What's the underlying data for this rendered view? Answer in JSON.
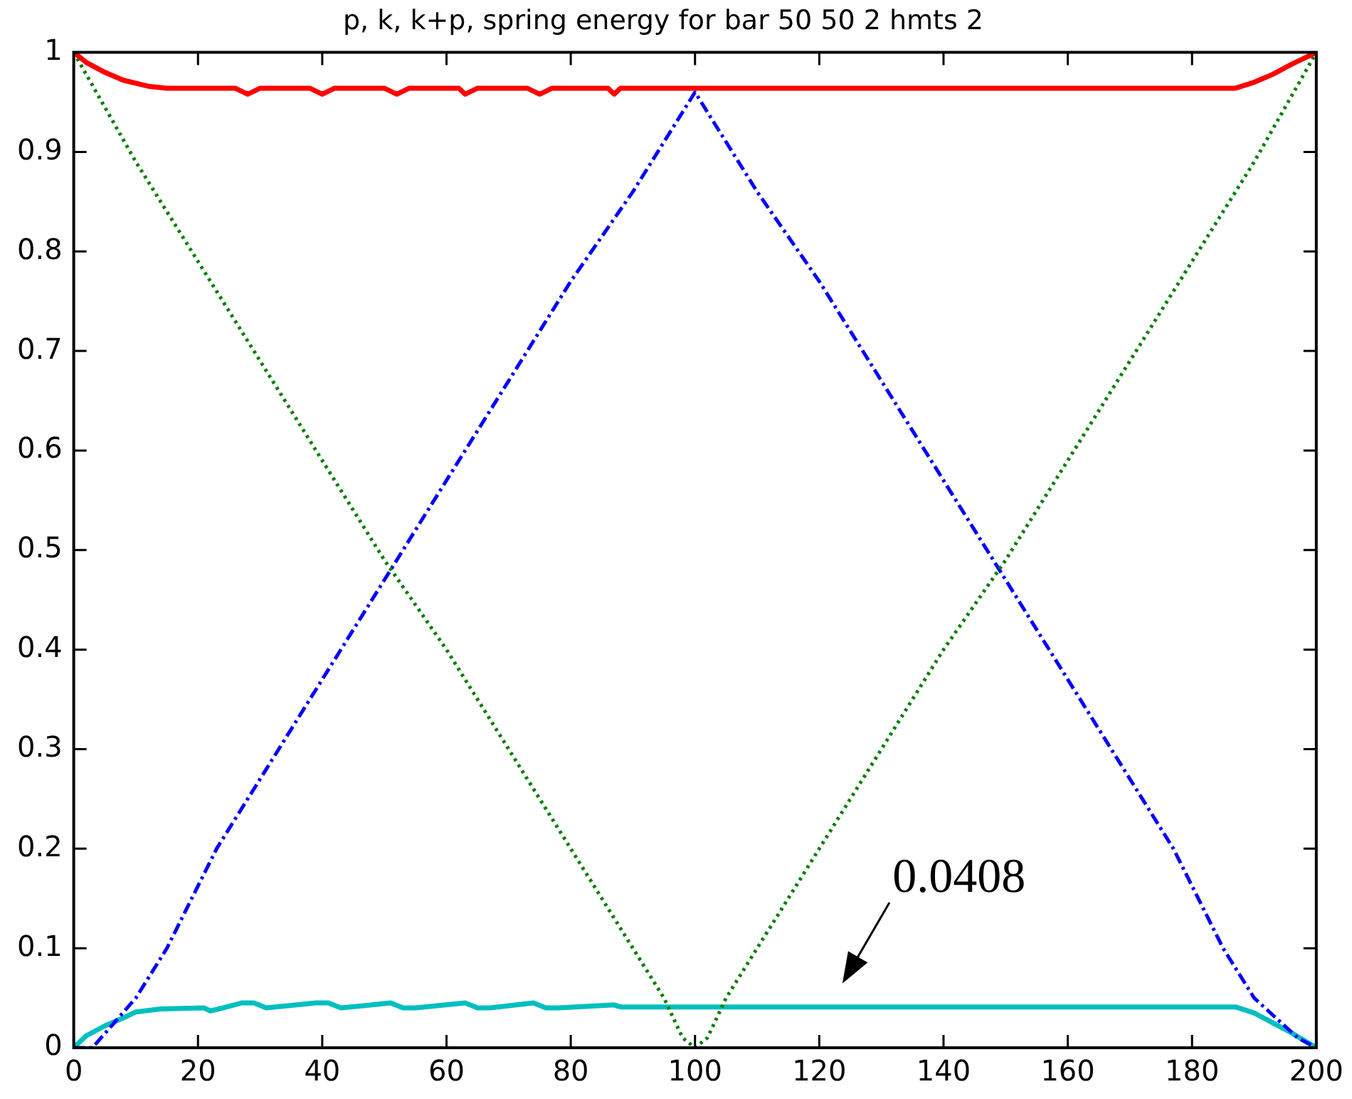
{
  "chart_data": {
    "type": "line",
    "title": "p, k, k+p, spring energy for bar 50 50 2 hmts 2",
    "xlim": [
      0,
      200
    ],
    "xticks": [
      0,
      20,
      40,
      60,
      80,
      100,
      120,
      140,
      160,
      180,
      200
    ],
    "ylim": [
      0,
      1
    ],
    "yticks": [
      0,
      0.1,
      0.2,
      0.3,
      0.4,
      0.5,
      0.6,
      0.7,
      0.8,
      0.9,
      1
    ],
    "grid": false,
    "legend": false,
    "marker": "none",
    "annotations": [
      {
        "text": "0.0408",
        "x": 124,
        "y": 0.041
      }
    ],
    "series": [
      {
        "color": "#ff0000",
        "line_style": "solid",
        "x": [
          0,
          2,
          5,
          8,
          12,
          15,
          26,
          28,
          30,
          38,
          40,
          42,
          50,
          52,
          54,
          62,
          63,
          65,
          73,
          75,
          77,
          86,
          87,
          88,
          187,
          190,
          193,
          196,
          200
        ],
        "values": [
          1,
          0.99,
          0.98,
          0.972,
          0.966,
          0.964,
          0.964,
          0.958,
          0.964,
          0.964,
          0.958,
          0.964,
          0.964,
          0.958,
          0.964,
          0.964,
          0.958,
          0.964,
          0.964,
          0.958,
          0.964,
          0.964,
          0.958,
          0.964,
          0.964,
          0.97,
          0.978,
          0.988,
          1
        ]
      },
      {
        "color": "#008000",
        "line_style": "dotted",
        "x": [
          0,
          10,
          20,
          30,
          40,
          50,
          60,
          70,
          80,
          90,
          95,
          98,
          100,
          102,
          105,
          110,
          120,
          130,
          140,
          150,
          160,
          170,
          180,
          190,
          200
        ],
        "values": [
          1,
          0.89,
          0.79,
          0.69,
          0.59,
          0.49,
          0.4,
          0.3,
          0.2,
          0.1,
          0.05,
          0.01,
          0,
          0.01,
          0.05,
          0.1,
          0.2,
          0.3,
          0.4,
          0.49,
          0.59,
          0.69,
          0.79,
          0.89,
          1
        ]
      },
      {
        "color": "#0000ff",
        "line_style": "dashed",
        "x": [
          0,
          3,
          10,
          15,
          23,
          30,
          40,
          50,
          60,
          70,
          80,
          90,
          97,
          100,
          103,
          110,
          120,
          130,
          140,
          150,
          160,
          170,
          177,
          185,
          190,
          197,
          200
        ],
        "values": [
          0,
          0,
          0.05,
          0.1,
          0.2,
          0.27,
          0.37,
          0.47,
          0.57,
          0.67,
          0.77,
          0.86,
          0.93,
          0.96,
          0.93,
          0.86,
          0.77,
          0.67,
          0.57,
          0.47,
          0.37,
          0.27,
          0.2,
          0.1,
          0.05,
          0.01,
          0
        ]
      },
      {
        "color": "#00bfbf",
        "line_style": "solid",
        "x": [
          0,
          2,
          5,
          8,
          10,
          14,
          21,
          22,
          24,
          27,
          29,
          31,
          39,
          41,
          43,
          51,
          53,
          55,
          63,
          65,
          67,
          74,
          76,
          78,
          87,
          88,
          187,
          190,
          193,
          196,
          200
        ],
        "values": [
          0,
          0.012,
          0.022,
          0.03,
          0.036,
          0.039,
          0.04,
          0.037,
          0.04,
          0.045,
          0.045,
          0.04,
          0.045,
          0.045,
          0.04,
          0.045,
          0.04,
          0.04,
          0.045,
          0.04,
          0.04,
          0.045,
          0.04,
          0.04,
          0.043,
          0.041,
          0.041,
          0.035,
          0.025,
          0.015,
          0
        ]
      }
    ]
  }
}
